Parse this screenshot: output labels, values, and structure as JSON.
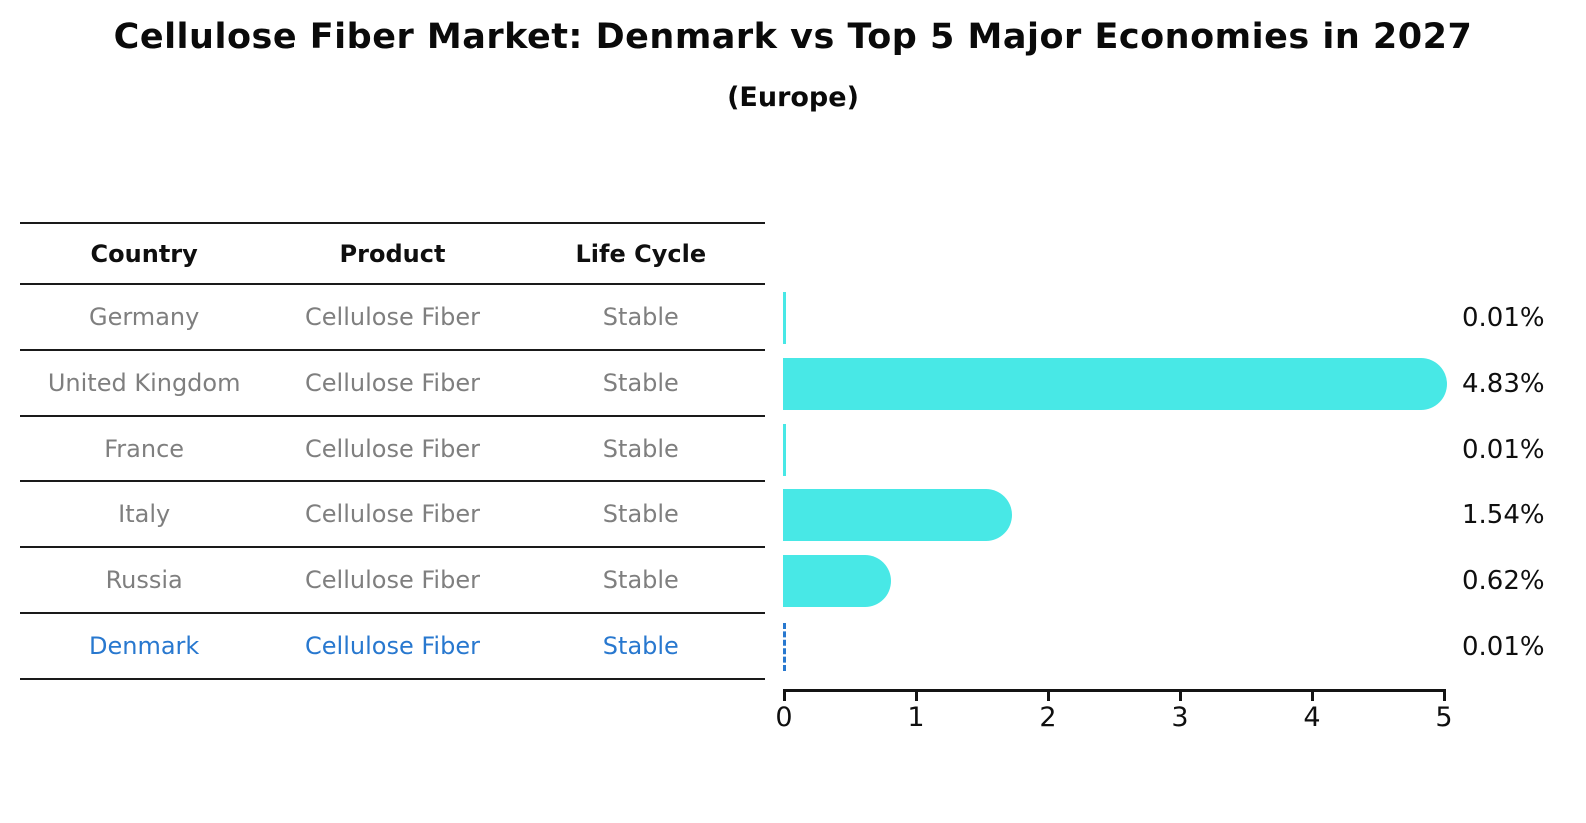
{
  "chart_data": {
    "type": "bar",
    "orientation": "horizontal",
    "title": "Cellulose Fiber Market: Denmark vs Top 5 Major Economies in 2027",
    "subtitle": "(Europe)",
    "categories": [
      "Germany",
      "United Kingdom",
      "France",
      "Italy",
      "Russia",
      "Denmark"
    ],
    "values": [
      0.01,
      4.83,
      0.01,
      1.54,
      0.62,
      0.01
    ],
    "value_labels": [
      "0.01%",
      "4.83%",
      "0.01%",
      "1.54%",
      "0.62%",
      "0.01%"
    ],
    "xlabel": "",
    "ylabel": "",
    "xlim": [
      0,
      5
    ],
    "x_ticks": [
      0,
      1,
      2,
      3,
      4,
      5
    ],
    "grid": false,
    "legend": false,
    "bar_color": "#48E8E6",
    "highlight_category": "Denmark",
    "highlight_style": "dashed-outline",
    "highlight_color": "#2878CF",
    "axis_color": "#141414",
    "label_color": "#0f0f0f"
  },
  "table": {
    "headers": [
      "Country",
      "Product",
      "Life Cycle"
    ],
    "row_text_color": "#7f7f7f",
    "line_color": "#1a1a1a",
    "rows": [
      {
        "country": "Germany",
        "product": "Cellulose Fiber",
        "life_cycle": "Stable",
        "highlighted": false
      },
      {
        "country": "United Kingdom",
        "product": "Cellulose Fiber",
        "life_cycle": "Stable",
        "highlighted": false
      },
      {
        "country": "France",
        "product": "Cellulose Fiber",
        "life_cycle": "Stable",
        "highlighted": false
      },
      {
        "country": "Italy",
        "product": "Cellulose Fiber",
        "life_cycle": "Stable",
        "highlighted": false
      },
      {
        "country": "Russia",
        "product": "Cellulose Fiber",
        "life_cycle": "Stable",
        "highlighted": false
      },
      {
        "country": "Denmark",
        "product": "Cellulose Fiber",
        "life_cycle": "Stable",
        "highlighted": true
      }
    ]
  }
}
